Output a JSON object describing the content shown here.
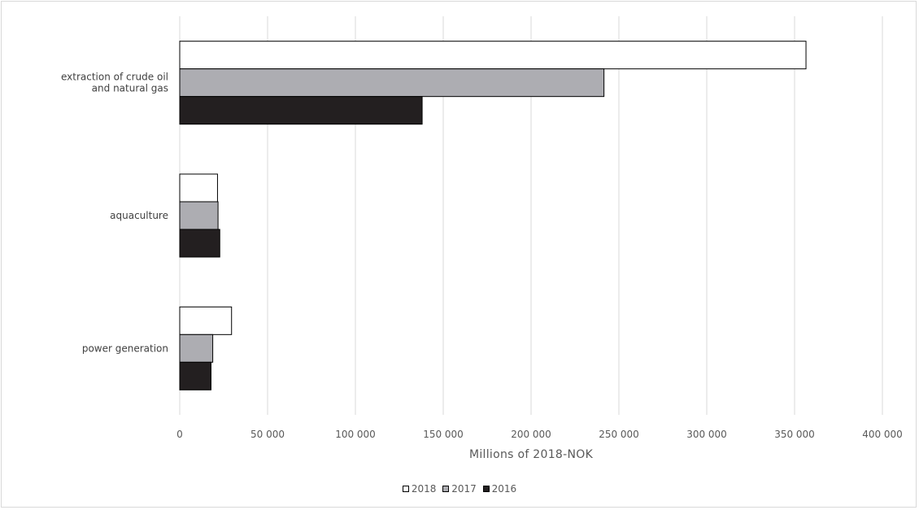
{
  "chart_data": {
    "type": "bar",
    "orientation": "horizontal",
    "categories": [
      "extraction of crude oil and natural gas",
      "aquaculture",
      "power generation"
    ],
    "category_lines": [
      [
        "extraction of crude oil",
        "and natural gas"
      ],
      [
        "aquaculture"
      ],
      [
        "power generation"
      ]
    ],
    "series": [
      {
        "name": "2018",
        "values": [
          356500,
          21500,
          29500
        ],
        "color": "#ffffff"
      },
      {
        "name": "2017",
        "values": [
          241500,
          21800,
          18800
        ],
        "color": "#adadb2"
      },
      {
        "name": "2016",
        "values": [
          138000,
          22800,
          17800
        ],
        "color": "#231f20"
      }
    ],
    "xlim": [
      0,
      400000
    ],
    "x_ticks": [
      0,
      50000,
      100000,
      150000,
      200000,
      250000,
      300000,
      350000,
      400000
    ],
    "x_tick_labels": [
      "0",
      "50 000",
      "100 000",
      "150 000",
      "200 000",
      "250 000",
      "300 000",
      "350 000",
      "400 000"
    ],
    "xlabel": "Millions of 2018-NOK",
    "ylabel": "",
    "title": "",
    "grid": "vertical",
    "legend_position": "bottom"
  }
}
